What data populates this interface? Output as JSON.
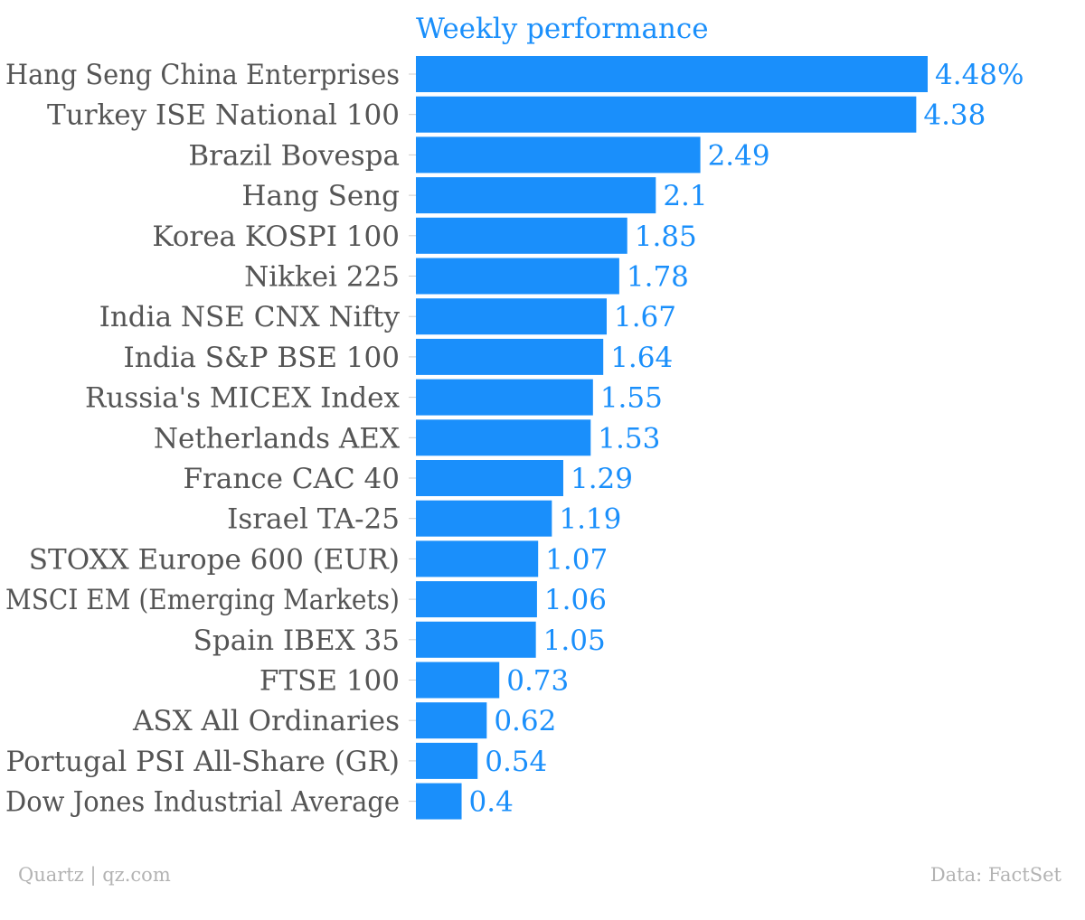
{
  "chart_data": {
    "type": "bar",
    "orientation": "horizontal",
    "title": "Weekly performance",
    "categories": [
      "Hang Seng China Enterprises",
      "Turkey ISE National 100",
      "Brazil Bovespa",
      "Hang Seng",
      "Korea KOSPI 100",
      "Nikkei 225",
      "India NSE CNX Nifty",
      "India S&P BSE 100",
      "Russia's MICEX Index",
      "Netherlands AEX",
      "France CAC 40",
      "Israel TA-25",
      "STOXX Europe 600 (EUR)",
      "MSCI EM (Emerging Markets)",
      "Spain IBEX 35",
      "FTSE 100",
      "ASX All Ordinaries",
      "Portugal PSI All-Share (GR)",
      "Dow Jones Industrial Average"
    ],
    "values": [
      4.48,
      4.38,
      2.49,
      2.1,
      1.85,
      1.78,
      1.67,
      1.64,
      1.55,
      1.53,
      1.29,
      1.19,
      1.07,
      1.06,
      1.05,
      0.73,
      0.62,
      0.54,
      0.4
    ],
    "data_labels": [
      "4.48%",
      "4.38",
      "2.49",
      "2.1",
      "1.85",
      "1.78",
      "1.67",
      "1.64",
      "1.55",
      "1.53",
      "1.29",
      "1.19",
      "1.07",
      "1.06",
      "1.05",
      "0.73",
      "0.62",
      "0.54",
      "0.4"
    ],
    "xlim": [
      0,
      4.48
    ],
    "grid": false,
    "legend": "none"
  },
  "colors": {
    "bar": "#1a8ffb",
    "data_label": "#1a8ffb",
    "title": "#1a8ffb",
    "category_label": "#555555",
    "footer": "#b3b3b3"
  },
  "footer": {
    "source_left": "Quartz | qz.com",
    "source_right": "Data: FactSet"
  }
}
